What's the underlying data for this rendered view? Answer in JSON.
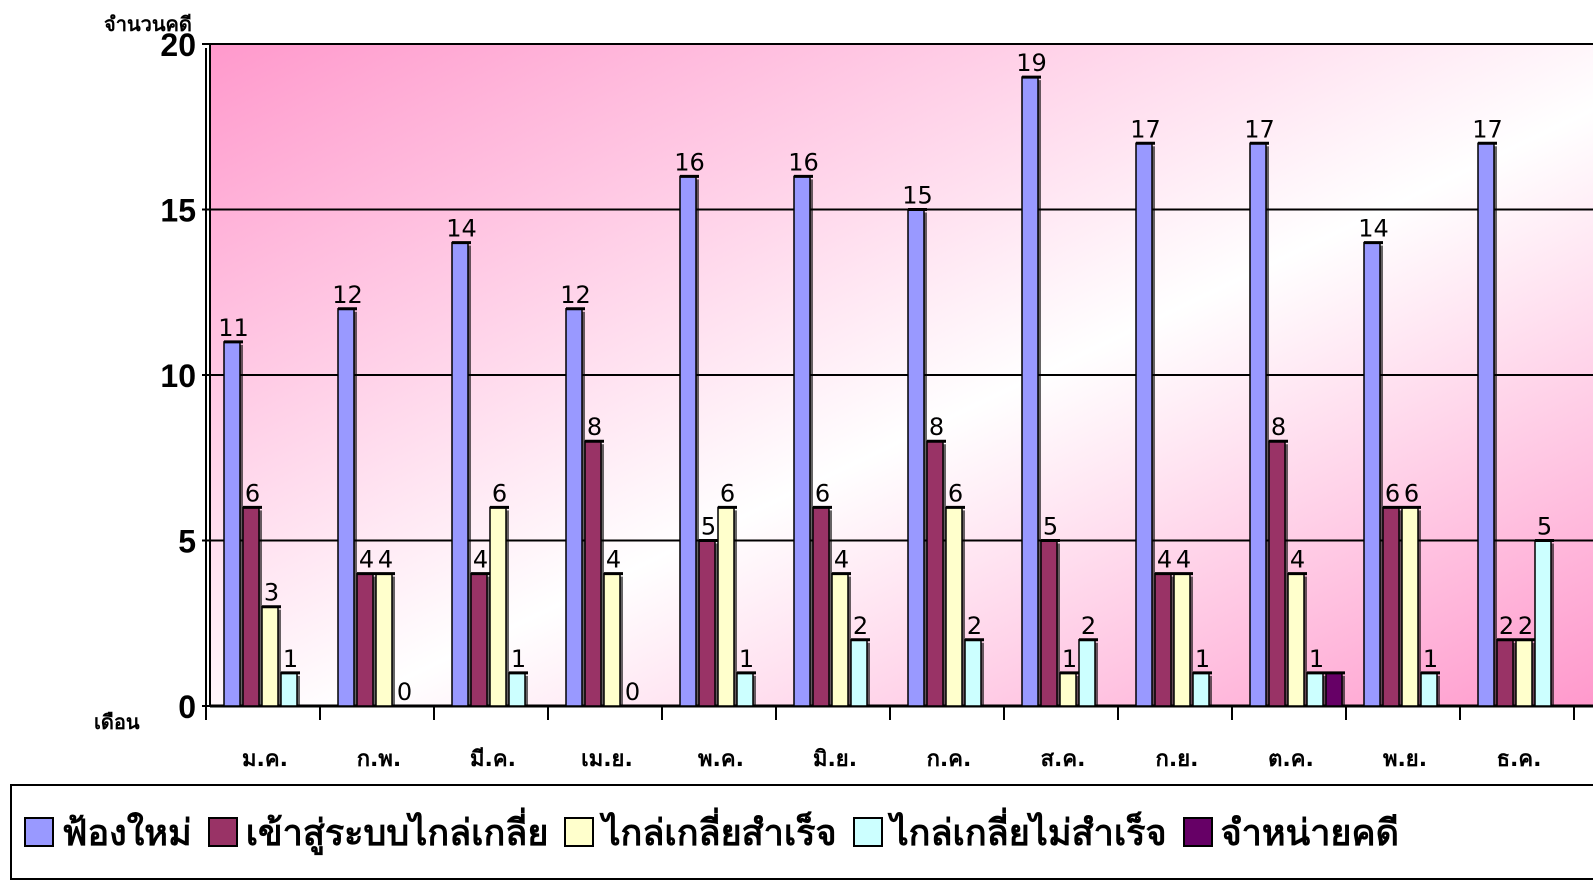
{
  "chart_data": {
    "type": "bar",
    "ylabel": "จำนวนคดี",
    "xlabel": "เดือน",
    "ylim": [
      0,
      20
    ],
    "yticks": [
      0,
      5,
      10,
      15,
      20
    ],
    "categories": [
      "ม.ค.",
      "ก.พ.",
      "มี.ค.",
      "เม.ย.",
      "พ.ค.",
      "มิ.ย.",
      "ก.ค.",
      "ส.ค.",
      "ก.ย.",
      "ต.ค.",
      "พ.ย.",
      "ธ.ค."
    ],
    "series": [
      {
        "name": "ฟ้องใหม่",
        "color": "#9999ff",
        "values": [
          11,
          12,
          14,
          12,
          16,
          16,
          15,
          19,
          17,
          17,
          14,
          17
        ]
      },
      {
        "name": "เข้าสู่ระบบไกล่เกลี่ย",
        "color": "#993366",
        "values": [
          6,
          4,
          4,
          8,
          5,
          6,
          8,
          5,
          4,
          8,
          6,
          2
        ]
      },
      {
        "name": "ไกล่เกลี่ยสำเร็จ",
        "color": "#ffffcc",
        "values": [
          3,
          4,
          6,
          4,
          6,
          4,
          6,
          1,
          4,
          4,
          6,
          2
        ]
      },
      {
        "name": "ไกล่เกลี่ยไม่สำเร็จ",
        "color": "#ccffff",
        "values": [
          1,
          0,
          1,
          0,
          1,
          2,
          2,
          2,
          1,
          1,
          1,
          5
        ]
      },
      {
        "name": "จำหน่ายคดี",
        "color": "#660066",
        "values": [
          0,
          0,
          0,
          0,
          0,
          0,
          0,
          0,
          0,
          1,
          0,
          0
        ]
      }
    ],
    "data_labels": [
      [
        11,
        6,
        3,
        1
      ],
      [
        12,
        4,
        4,
        0
      ],
      [
        14,
        4,
        6,
        1
      ],
      [
        12,
        8,
        4,
        0
      ],
      [
        16,
        5,
        6,
        1
      ],
      [
        16,
        6,
        4,
        2
      ],
      [
        15,
        8,
        6,
        2
      ],
      [
        19,
        5,
        1,
        2
      ],
      [
        17,
        4,
        4,
        1
      ],
      [
        17,
        8,
        4,
        1
      ],
      [
        14,
        6,
        6,
        1
      ],
      [
        17,
        2,
        2,
        5
      ]
    ],
    "grid": true,
    "background_gradient": [
      "#ff99cc",
      "#ffffff"
    ],
    "legend_position": "bottom"
  }
}
